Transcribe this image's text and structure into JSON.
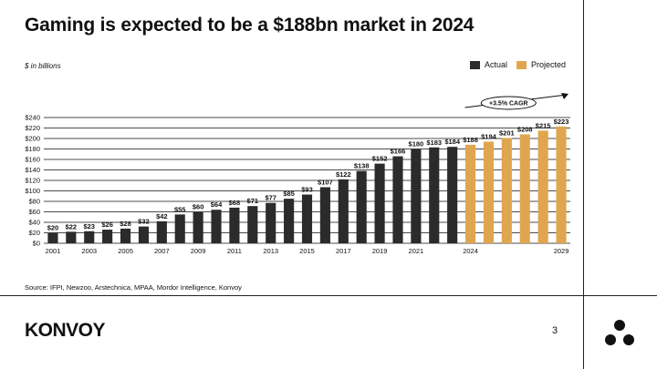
{
  "slide": {
    "title": "Gaming is expected to be a $188bn market in 2024",
    "unit_note": "$ in billions",
    "source": "Source: IFPI, Newzoo, Arstechnica, MPAA, Mordor Intelligence, Konvoy",
    "logo": "KONVOY",
    "page_number": "3",
    "icon": "konvoy-triangle-dots-icon"
  },
  "legend": [
    {
      "label": "Actual",
      "color": "#2b2b2b"
    },
    {
      "label": "Projected",
      "color": "#e0a64f"
    }
  ],
  "colors": {
    "actual": "#2b2b2b",
    "projected": "#e0a64f",
    "grid": "#111111"
  },
  "chart_data": {
    "type": "bar",
    "categories": [
      "2001",
      "2002",
      "2003",
      "2004",
      "2005",
      "2006",
      "2007",
      "2008",
      "2009",
      "2010",
      "2011",
      "2012",
      "2013",
      "2014",
      "2015",
      "2016",
      "2017",
      "2018",
      "2019",
      "2020",
      "2021",
      "2022",
      "2023",
      "2024",
      "2025",
      "2026",
      "2027",
      "2028",
      "2029"
    ],
    "x_tick_labels": [
      "2001",
      "2003",
      "2005",
      "2007",
      "2009",
      "2011",
      "2013",
      "2015",
      "2017",
      "2019",
      "2021",
      "2024",
      "2029"
    ],
    "x_tick_years": [
      "2001",
      "2003",
      "2005",
      "2007",
      "2009",
      "2011",
      "2013",
      "2015",
      "2017",
      "2019",
      "2021",
      "2024",
      "2029"
    ],
    "values": [
      20,
      22,
      23,
      26,
      28,
      32,
      42,
      55,
      60,
      64,
      68,
      71,
      77,
      85,
      93,
      107,
      122,
      138,
      152,
      166,
      180,
      183,
      184,
      188,
      194,
      201,
      208,
      215,
      223
    ],
    "data_labels": [
      "$20",
      "$22",
      "$23",
      "$26",
      "$28",
      "$32",
      "$42",
      "$55",
      "$60",
      "$64",
      "$68",
      "$71",
      "$77",
      "$85",
      "$93",
      "$107",
      "$122",
      "$138",
      "$152",
      "$166",
      "$180",
      "$183",
      "$184",
      "$188",
      "$194",
      "$201",
      "$208",
      "$215",
      "$223"
    ],
    "series_status": [
      "Actual",
      "Actual",
      "Actual",
      "Actual",
      "Actual",
      "Actual",
      "Actual",
      "Actual",
      "Actual",
      "Actual",
      "Actual",
      "Actual",
      "Actual",
      "Actual",
      "Actual",
      "Actual",
      "Actual",
      "Actual",
      "Actual",
      "Actual",
      "Actual",
      "Actual",
      "Actual",
      "Projected",
      "Projected",
      "Projected",
      "Projected",
      "Projected",
      "Projected"
    ],
    "ylim": [
      0,
      240
    ],
    "y_ticks": [
      0,
      20,
      40,
      60,
      80,
      100,
      120,
      140,
      160,
      180,
      200,
      220,
      240
    ],
    "y_tick_labels": [
      "$0",
      "$20",
      "$40",
      "$60",
      "$80",
      "$100",
      "$120",
      "$140",
      "$160",
      "$180",
      "$200",
      "$220",
      "$240"
    ],
    "grid": true,
    "legend_position": "top-right",
    "annotation": "+3.5% CAGR"
  }
}
